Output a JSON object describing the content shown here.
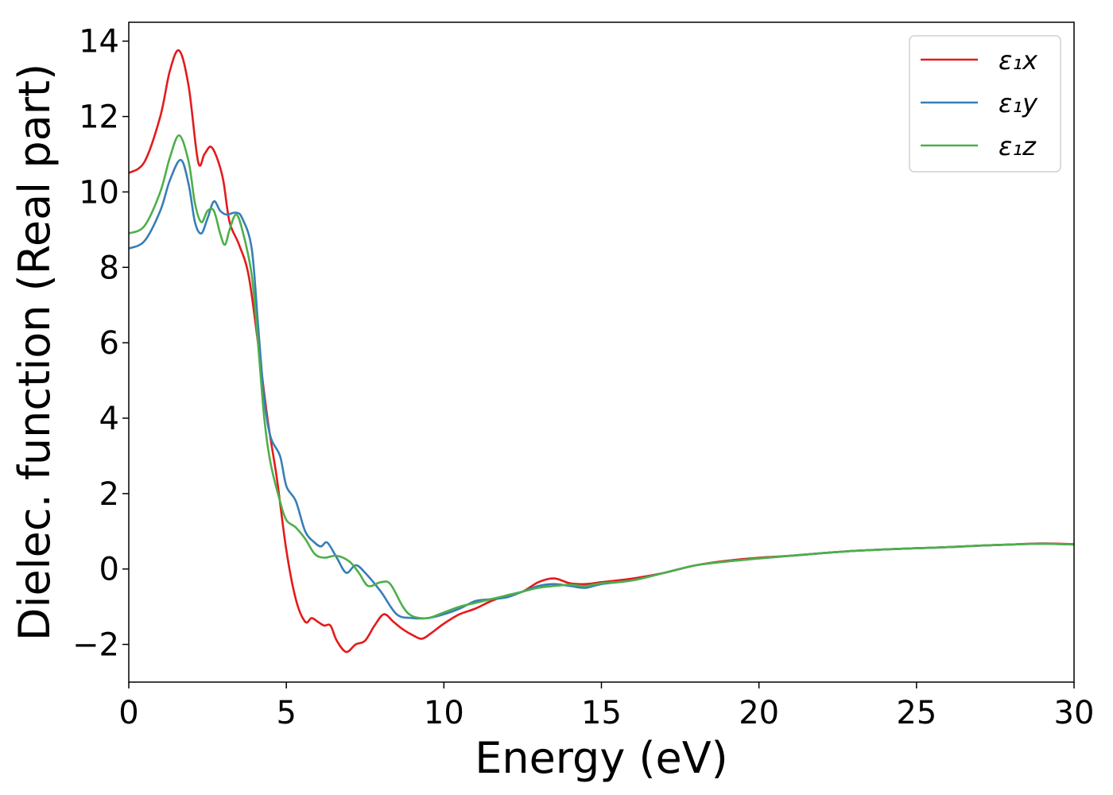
{
  "chart_data": {
    "type": "line",
    "xlabel": "Energy (eV)",
    "ylabel": "Dielec. function (Real part)",
    "xlim": [
      0,
      30
    ],
    "ylim": [
      -3,
      14.5
    ],
    "xticks": [
      0,
      5,
      10,
      15,
      20,
      25,
      30
    ],
    "yticks": [
      -2,
      0,
      2,
      4,
      6,
      8,
      10,
      12,
      14
    ],
    "xtick_labels": [
      "0",
      "5",
      "10",
      "15",
      "20",
      "25",
      "30"
    ],
    "ytick_labels": [
      "−2",
      "0",
      "2",
      "4",
      "6",
      "8",
      "10",
      "12",
      "14"
    ],
    "grid": false,
    "legend_position": "top-right",
    "series": [
      {
        "name": "ε₁x",
        "color": "#e41a1c",
        "x": [
          0,
          0.5,
          1.0,
          1.3,
          1.6,
          1.9,
          2.2,
          2.4,
          2.6,
          2.8,
          3.0,
          3.2,
          3.5,
          3.8,
          4.1,
          4.4,
          4.7,
          5.0,
          5.3,
          5.6,
          5.8,
          6.0,
          6.2,
          6.4,
          6.6,
          6.9,
          7.2,
          7.5,
          7.8,
          8.1,
          8.4,
          8.7,
          9.0,
          9.3,
          9.6,
          10.0,
          10.5,
          11.0,
          11.5,
          12.0,
          12.5,
          13.0,
          13.5,
          14.0,
          14.5,
          15.0,
          16.0,
          17.0,
          18.0,
          19.0,
          20.0,
          21.0,
          22.0,
          23.0,
          24.0,
          25.0,
          26.0,
          27.0,
          28.0,
          29.0,
          30.0
        ],
        "y": [
          10.5,
          10.8,
          12.0,
          13.2,
          13.75,
          12.8,
          10.8,
          11.0,
          11.2,
          10.9,
          10.3,
          9.2,
          8.6,
          7.8,
          6.0,
          4.0,
          2.4,
          0.5,
          -0.8,
          -1.4,
          -1.3,
          -1.4,
          -1.5,
          -1.5,
          -1.9,
          -2.2,
          -2.0,
          -1.9,
          -1.5,
          -1.2,
          -1.4,
          -1.6,
          -1.75,
          -1.85,
          -1.7,
          -1.45,
          -1.2,
          -1.05,
          -0.85,
          -0.7,
          -0.6,
          -0.35,
          -0.25,
          -0.38,
          -0.4,
          -0.35,
          -0.25,
          -0.1,
          0.1,
          0.22,
          0.3,
          0.35,
          0.42,
          0.48,
          0.52,
          0.55,
          0.58,
          0.62,
          0.65,
          0.68,
          0.66
        ]
      },
      {
        "name": "ε₁y",
        "color": "#377eb8",
        "x": [
          0,
          0.5,
          1.0,
          1.3,
          1.65,
          1.9,
          2.1,
          2.3,
          2.5,
          2.7,
          2.9,
          3.1,
          3.4,
          3.6,
          3.9,
          4.1,
          4.3,
          4.5,
          4.8,
          5.0,
          5.3,
          5.6,
          5.9,
          6.1,
          6.3,
          6.6,
          6.9,
          7.2,
          7.5,
          8.0,
          8.5,
          9.0,
          9.5,
          10.0,
          10.5,
          11.0,
          11.5,
          12.0,
          12.5,
          13.0,
          13.5,
          14.0,
          14.5,
          15.0,
          16.0,
          17.0,
          18.0,
          19.0,
          20.0,
          21.0,
          22.0,
          23.0,
          24.0,
          25.0,
          26.0,
          27.0,
          28.0,
          29.0,
          30.0
        ],
        "y": [
          8.5,
          8.7,
          9.5,
          10.3,
          10.85,
          10.2,
          9.2,
          8.9,
          9.3,
          9.75,
          9.5,
          9.4,
          9.45,
          9.3,
          8.5,
          6.5,
          4.5,
          3.5,
          3.0,
          2.2,
          1.8,
          1.0,
          0.7,
          0.6,
          0.7,
          0.3,
          -0.1,
          0.1,
          -0.1,
          -0.6,
          -1.2,
          -1.3,
          -1.3,
          -1.2,
          -1.05,
          -0.85,
          -0.8,
          -0.75,
          -0.6,
          -0.45,
          -0.4,
          -0.45,
          -0.5,
          -0.4,
          -0.3,
          -0.1,
          0.1,
          0.2,
          0.28,
          0.35,
          0.42,
          0.48,
          0.52,
          0.55,
          0.58,
          0.62,
          0.65,
          0.67,
          0.65
        ]
      },
      {
        "name": "ε₁z",
        "color": "#4daf4a",
        "x": [
          0,
          0.5,
          1.0,
          1.3,
          1.6,
          1.9,
          2.1,
          2.3,
          2.5,
          2.7,
          2.9,
          3.05,
          3.2,
          3.4,
          3.6,
          3.9,
          4.1,
          4.3,
          4.5,
          4.8,
          5.0,
          5.3,
          5.6,
          5.9,
          6.2,
          6.6,
          7.0,
          7.3,
          7.6,
          8.0,
          8.3,
          8.7,
          9.0,
          9.5,
          10.0,
          10.5,
          11.0,
          11.5,
          12.0,
          12.5,
          13.0,
          13.5,
          14.0,
          14.5,
          15.0,
          16.0,
          17.0,
          18.0,
          19.0,
          20.0,
          21.0,
          22.0,
          23.0,
          24.0,
          25.0,
          26.0,
          27.0,
          28.0,
          29.0,
          30.0
        ],
        "y": [
          8.9,
          9.1,
          10.0,
          10.9,
          11.5,
          10.8,
          9.7,
          9.2,
          9.5,
          9.5,
          8.9,
          8.6,
          9.0,
          9.4,
          9.0,
          7.8,
          6.0,
          4.0,
          2.8,
          1.8,
          1.3,
          1.1,
          0.8,
          0.4,
          0.3,
          0.35,
          0.2,
          -0.1,
          -0.45,
          -0.35,
          -0.4,
          -1.0,
          -1.25,
          -1.3,
          -1.15,
          -1.0,
          -0.9,
          -0.8,
          -0.7,
          -0.6,
          -0.5,
          -0.45,
          -0.42,
          -0.45,
          -0.38,
          -0.3,
          -0.1,
          0.1,
          0.2,
          0.28,
          0.35,
          0.42,
          0.48,
          0.52,
          0.55,
          0.58,
          0.62,
          0.65,
          0.67,
          0.65
        ]
      }
    ]
  }
}
